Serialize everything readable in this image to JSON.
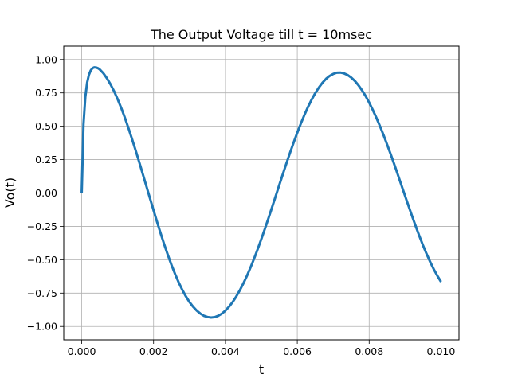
{
  "chart_data": {
    "type": "line",
    "title": "The Output Voltage till t = 10msec",
    "xlabel": "t",
    "ylabel": "Vo(t)",
    "xlim": [
      -0.0005,
      0.0105
    ],
    "ylim": [
      -1.1,
      1.1
    ],
    "xticks": [
      0.0,
      0.002,
      0.004,
      0.006,
      0.008,
      0.01
    ],
    "xtick_labels": [
      "0.000",
      "0.002",
      "0.004",
      "0.006",
      "0.008",
      "0.010"
    ],
    "yticks": [
      -1.0,
      -0.75,
      -0.5,
      -0.25,
      0.0,
      0.25,
      0.5,
      0.75,
      1.0
    ],
    "ytick_labels": [
      "−1.00",
      "−0.75",
      "−0.50",
      "−0.25",
      "0.00",
      "0.25",
      "0.50",
      "0.75",
      "1.00"
    ],
    "grid": true,
    "series": [
      {
        "color": "#1f77b4",
        "x": [
          0.0,
          5e-05,
          0.0001,
          0.00015,
          0.0002,
          0.00025,
          0.0003,
          0.00035,
          0.0004,
          0.00045,
          0.0005,
          0.0006,
          0.0007,
          0.0008,
          0.0009,
          0.001,
          0.0011,
          0.0012,
          0.0013,
          0.0014,
          0.0015,
          0.0016,
          0.0017,
          0.0018,
          0.0019,
          0.002,
          0.0021,
          0.0022,
          0.0023,
          0.0024,
          0.0025,
          0.0026,
          0.0027,
          0.0028,
          0.0029,
          0.003,
          0.0031,
          0.0032,
          0.0033,
          0.0034,
          0.0035,
          0.0036,
          0.0037,
          0.0038,
          0.0039,
          0.004,
          0.0041,
          0.0042,
          0.0043,
          0.0044,
          0.0045,
          0.0046,
          0.0047,
          0.0048,
          0.0049,
          0.005,
          0.0051,
          0.0052,
          0.0053,
          0.0054,
          0.0055,
          0.0056,
          0.0057,
          0.0058,
          0.0059,
          0.006,
          0.0061,
          0.0062,
          0.0063,
          0.0064,
          0.0065,
          0.0066,
          0.0067,
          0.0068,
          0.0069,
          0.007,
          0.0071,
          0.0072,
          0.0073,
          0.0074,
          0.0075,
          0.0076,
          0.0077,
          0.0078,
          0.0079,
          0.008,
          0.0081,
          0.0082,
          0.0083,
          0.0084,
          0.0085,
          0.0086,
          0.0087,
          0.0088,
          0.0089,
          0.009,
          0.0091,
          0.0092,
          0.0093,
          0.0094,
          0.0095,
          0.0096,
          0.0097,
          0.0098,
          0.0099,
          0.01
        ],
        "y": [
          0.0,
          0.515,
          0.717,
          0.825,
          0.884,
          0.918,
          0.935,
          0.941,
          0.94,
          0.935,
          0.926,
          0.898,
          0.86,
          0.815,
          0.763,
          0.703,
          0.637,
          0.565,
          0.487,
          0.405,
          0.32,
          0.232,
          0.142,
          0.051,
          -0.04,
          -0.13,
          -0.219,
          -0.305,
          -0.388,
          -0.466,
          -0.54,
          -0.608,
          -0.67,
          -0.726,
          -0.775,
          -0.817,
          -0.852,
          -0.881,
          -0.903,
          -0.92,
          -0.929,
          -0.933,
          -0.93,
          -0.92,
          -0.904,
          -0.881,
          -0.852,
          -0.817,
          -0.776,
          -0.729,
          -0.677,
          -0.62,
          -0.557,
          -0.49,
          -0.419,
          -0.344,
          -0.267,
          -0.187,
          -0.105,
          -0.022,
          0.061,
          0.143,
          0.224,
          0.303,
          0.379,
          0.452,
          0.521,
          0.586,
          0.646,
          0.7,
          0.748,
          0.79,
          0.826,
          0.855,
          0.877,
          0.892,
          0.901,
          0.902,
          0.896,
          0.884,
          0.865,
          0.84,
          0.808,
          0.77,
          0.727,
          0.678,
          0.623,
          0.564,
          0.501,
          0.434,
          0.363,
          0.29,
          0.214,
          0.136,
          0.057,
          -0.022,
          -0.1,
          -0.177,
          -0.252,
          -0.324,
          -0.393,
          -0.457,
          -0.517,
          -0.572,
          -0.621,
          -0.665
        ]
      }
    ]
  }
}
